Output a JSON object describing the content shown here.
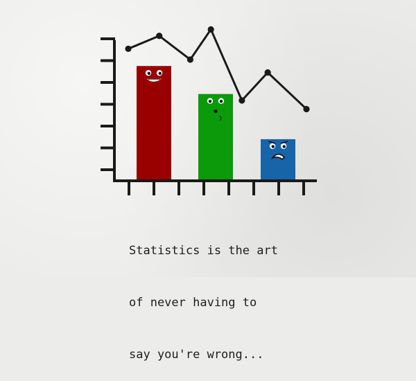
{
  "chart_data": {
    "type": "bar",
    "categories": [
      "",
      "",
      ""
    ],
    "values": [
      5.3,
      4.0,
      1.9
    ],
    "colors": [
      "#990000",
      "#0a9a0a",
      "#1764a8"
    ],
    "faces": [
      "happy",
      "surprised",
      "sad"
    ],
    "line": {
      "type": "line",
      "x": [
        0.6,
        1.8,
        3.0,
        3.8,
        5.0,
        6.0,
        7.5
      ],
      "y": [
        6.1,
        6.7,
        5.6,
        7.0,
        3.7,
        5.0,
        3.3
      ],
      "color": "#1a1a1a",
      "markers": true
    },
    "ylim": [
      0,
      6.5
    ],
    "y_ticks": 7,
    "x_ticks": 8,
    "grid": false,
    "legend": "none",
    "title": "",
    "xlabel": "",
    "ylabel": ""
  },
  "caption": {
    "lines": [
      "Statistics is the art",
      "of never having to",
      "say you're wrong..."
    ]
  }
}
